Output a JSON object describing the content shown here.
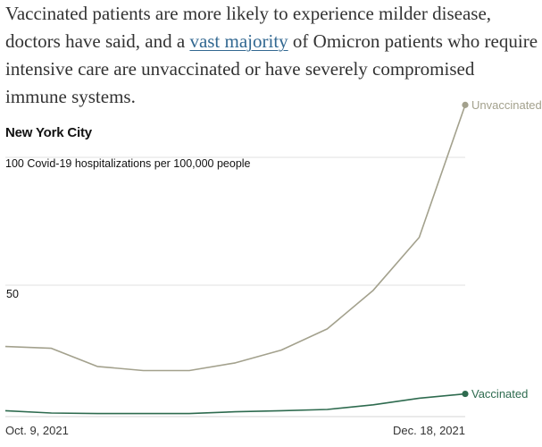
{
  "paragraph": {
    "before_link": "Vaccinated patients are more likely to experience milder disease, doctors have said, and a ",
    "link_text": "vast majority",
    "after_link": " of Omicron patients who require intensive care are unvaccinated or have severely compromised immune systems."
  },
  "colors": {
    "text": "#333333",
    "link": "#326891",
    "unvaccinated": "#a3a18d",
    "vaccinated": "#2e6b4f",
    "gridline": "#e2e2e2",
    "axis": "#d6d6d6"
  },
  "chart_data": {
    "type": "line",
    "title": "New York City",
    "ylabel": "100 Covid-19 hospitalizations per 100,000 people",
    "xlabel": "",
    "ylim": [
      0,
      100
    ],
    "yticks": [
      50,
      100
    ],
    "ytick_labels": {
      "50": "50"
    },
    "grid": true,
    "x_tick_labels": {
      "start": "Oct. 9, 2021",
      "end": "Dec. 18, 2021"
    },
    "x": [
      0,
      1,
      2,
      3,
      4,
      5,
      6,
      7,
      8,
      9,
      10
    ],
    "series": [
      {
        "name": "Unvaccinated",
        "values": [
          26,
          25.3,
          18.2,
          16.6,
          16.6,
          19.6,
          24.6,
          32.9,
          48,
          68.7,
          120.5
        ]
      },
      {
        "name": "Vaccinated",
        "values": [
          0.9,
          0,
          -0.2,
          -0.2,
          -0.2,
          0.5,
          0.9,
          1.4,
          3.2,
          5.8,
          7.5
        ]
      }
    ]
  }
}
